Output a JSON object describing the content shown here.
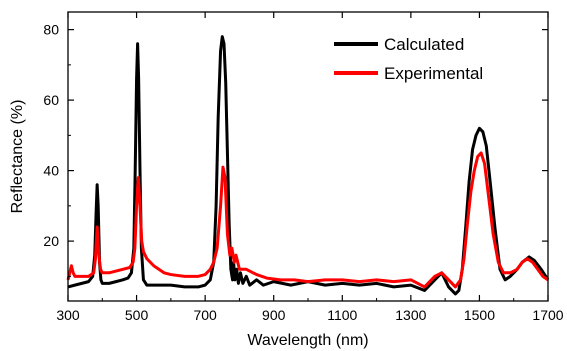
{
  "chart_data": {
    "type": "line",
    "xlabel": "Wavelength (nm)",
    "ylabel": "Reflectance (%)",
    "xlim": [
      300,
      1700
    ],
    "ylim": [
      3,
      85
    ],
    "x_ticks": [
      300,
      500,
      700,
      900,
      1100,
      1300,
      1500,
      1700
    ],
    "y_ticks": [
      20,
      40,
      60,
      80
    ],
    "legend_position": "top-right",
    "series": [
      {
        "name": "Calculated",
        "color": "#000000",
        "points": [
          [
            300,
            7
          ],
          [
            320,
            7.5
          ],
          [
            340,
            8
          ],
          [
            360,
            8.5
          ],
          [
            372,
            10
          ],
          [
            378,
            16
          ],
          [
            382,
            28
          ],
          [
            385,
            36
          ],
          [
            388,
            30
          ],
          [
            392,
            14
          ],
          [
            396,
            9
          ],
          [
            400,
            8
          ],
          [
            420,
            8
          ],
          [
            440,
            8.5
          ],
          [
            460,
            9
          ],
          [
            475,
            9.5
          ],
          [
            485,
            11
          ],
          [
            492,
            18
          ],
          [
            496,
            40
          ],
          [
            500,
            66
          ],
          [
            503,
            76
          ],
          [
            506,
            66
          ],
          [
            510,
            40
          ],
          [
            514,
            18
          ],
          [
            520,
            9
          ],
          [
            530,
            7.5
          ],
          [
            560,
            7.5
          ],
          [
            600,
            7.5
          ],
          [
            640,
            7
          ],
          [
            680,
            7
          ],
          [
            700,
            7.5
          ],
          [
            715,
            9
          ],
          [
            725,
            14
          ],
          [
            732,
            30
          ],
          [
            738,
            55
          ],
          [
            745,
            74
          ],
          [
            750,
            78
          ],
          [
            755,
            76
          ],
          [
            760,
            65
          ],
          [
            765,
            45
          ],
          [
            770,
            25
          ],
          [
            775,
            12
          ],
          [
            780,
            9
          ],
          [
            783,
            14
          ],
          [
            787,
            9
          ],
          [
            792,
            12
          ],
          [
            797,
            8
          ],
          [
            803,
            11
          ],
          [
            810,
            8
          ],
          [
            820,
            10
          ],
          [
            830,
            7.5
          ],
          [
            850,
            9
          ],
          [
            870,
            7.5
          ],
          [
            900,
            8.5
          ],
          [
            950,
            7.5
          ],
          [
            1000,
            8.5
          ],
          [
            1050,
            7.5
          ],
          [
            1100,
            8
          ],
          [
            1150,
            7.5
          ],
          [
            1200,
            8
          ],
          [
            1250,
            7
          ],
          [
            1300,
            7.5
          ],
          [
            1340,
            6
          ],
          [
            1370,
            9
          ],
          [
            1390,
            11
          ],
          [
            1410,
            7
          ],
          [
            1430,
            5
          ],
          [
            1440,
            6
          ],
          [
            1450,
            12
          ],
          [
            1460,
            24
          ],
          [
            1470,
            37
          ],
          [
            1480,
            46
          ],
          [
            1490,
            50
          ],
          [
            1500,
            52
          ],
          [
            1510,
            51
          ],
          [
            1520,
            47
          ],
          [
            1530,
            38
          ],
          [
            1545,
            24
          ],
          [
            1560,
            12
          ],
          [
            1575,
            9
          ],
          [
            1590,
            10
          ],
          [
            1610,
            12
          ],
          [
            1625,
            14
          ],
          [
            1645,
            15.5
          ],
          [
            1660,
            14.5
          ],
          [
            1680,
            12
          ],
          [
            1700,
            9
          ]
        ]
      },
      {
        "name": "Experimental",
        "color": "#ff0000",
        "points": [
          [
            300,
            9
          ],
          [
            305,
            11
          ],
          [
            310,
            13
          ],
          [
            315,
            11
          ],
          [
            320,
            10
          ],
          [
            340,
            10
          ],
          [
            360,
            10
          ],
          [
            375,
            11
          ],
          [
            380,
            15
          ],
          [
            385,
            24
          ],
          [
            390,
            16
          ],
          [
            395,
            12
          ],
          [
            400,
            11
          ],
          [
            420,
            11
          ],
          [
            440,
            11.5
          ],
          [
            460,
            12
          ],
          [
            480,
            12.5
          ],
          [
            490,
            14
          ],
          [
            495,
            18
          ],
          [
            500,
            30
          ],
          [
            505,
            38
          ],
          [
            510,
            30
          ],
          [
            515,
            20
          ],
          [
            520,
            17
          ],
          [
            530,
            15
          ],
          [
            550,
            13
          ],
          [
            580,
            11
          ],
          [
            600,
            10.5
          ],
          [
            640,
            10
          ],
          [
            680,
            10
          ],
          [
            700,
            10.5
          ],
          [
            715,
            12
          ],
          [
            725,
            14
          ],
          [
            735,
            18
          ],
          [
            745,
            30
          ],
          [
            752,
            41
          ],
          [
            758,
            38
          ],
          [
            765,
            22
          ],
          [
            772,
            16
          ],
          [
            778,
            18
          ],
          [
            785,
            14
          ],
          [
            790,
            16
          ],
          [
            800,
            12
          ],
          [
            820,
            12
          ],
          [
            850,
            10.5
          ],
          [
            880,
            9.5
          ],
          [
            920,
            9
          ],
          [
            960,
            9
          ],
          [
            1000,
            8.5
          ],
          [
            1050,
            9
          ],
          [
            1100,
            9
          ],
          [
            1150,
            8.5
          ],
          [
            1200,
            9
          ],
          [
            1250,
            8.5
          ],
          [
            1300,
            9
          ],
          [
            1340,
            7
          ],
          [
            1370,
            10
          ],
          [
            1390,
            11
          ],
          [
            1410,
            9
          ],
          [
            1430,
            7
          ],
          [
            1445,
            9
          ],
          [
            1455,
            15
          ],
          [
            1465,
            25
          ],
          [
            1475,
            34
          ],
          [
            1485,
            40
          ],
          [
            1495,
            44
          ],
          [
            1505,
            45
          ],
          [
            1515,
            42
          ],
          [
            1525,
            34
          ],
          [
            1540,
            22
          ],
          [
            1555,
            14
          ],
          [
            1570,
            11
          ],
          [
            1590,
            11
          ],
          [
            1610,
            12
          ],
          [
            1625,
            14
          ],
          [
            1640,
            15
          ],
          [
            1655,
            14
          ],
          [
            1670,
            12
          ],
          [
            1685,
            10
          ],
          [
            1700,
            9
          ]
        ]
      }
    ]
  }
}
